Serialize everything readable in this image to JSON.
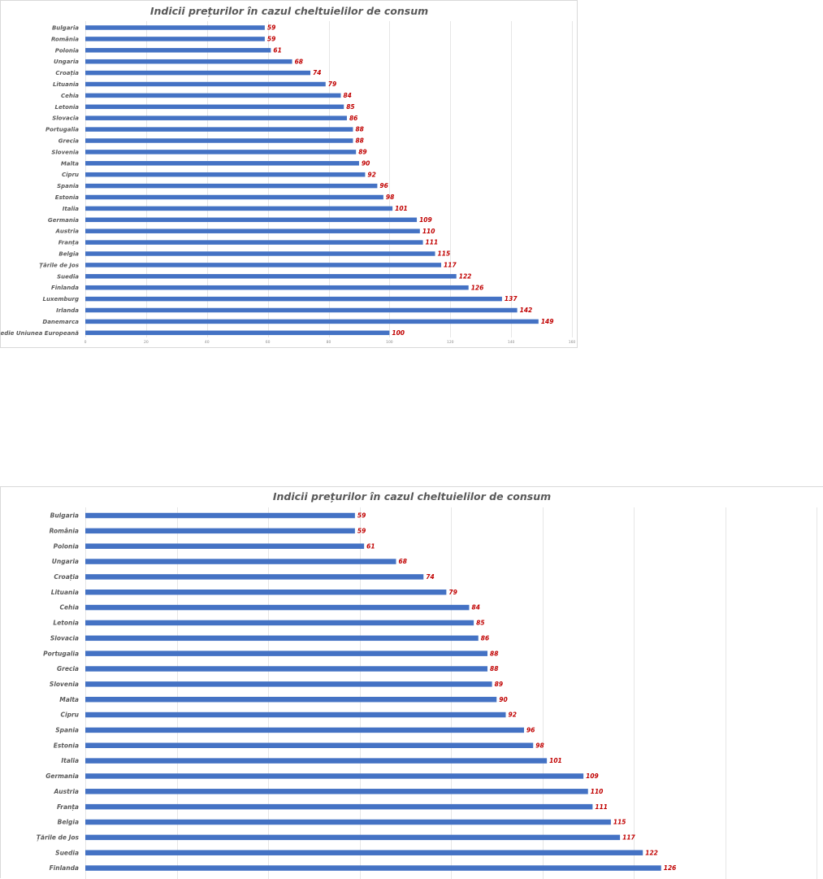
{
  "chart_data": [
    {
      "type": "bar",
      "orientation": "horizontal",
      "title": "Indicii prețurilor în cazul cheltuielilor de consum",
      "categories": [
        "Bulgaria",
        "România",
        "Polonia",
        "Ungaria",
        "Croația",
        "Lituania",
        "Cehia",
        "Letonia",
        "Slovacia",
        "Portugalia",
        "Grecia",
        "Slovenia",
        "Malta",
        "Cipru",
        "Spania",
        "Estonia",
        "Italia",
        "Germania",
        "Austria",
        "Franța",
        "Belgia",
        "Țările de Jos",
        "Suedia",
        "Finlanda",
        "Luxemburg",
        "Irlanda",
        "Danemarca",
        "medie Uniunea Europeană"
      ],
      "values": [
        59,
        59,
        61,
        68,
        74,
        79,
        84,
        85,
        86,
        88,
        88,
        89,
        90,
        92,
        96,
        98,
        101,
        109,
        110,
        111,
        115,
        117,
        122,
        126,
        137,
        142,
        149,
        100
      ],
      "xlim": [
        0,
        160
      ],
      "xticks": [
        0,
        20,
        40,
        60,
        80,
        100,
        120,
        140,
        160
      ],
      "grid": true,
      "bar_color": "#4472c4",
      "label_color": "#c00000"
    },
    {
      "type": "bar",
      "orientation": "horizontal",
      "title": "Indicii prețurilor în cazul cheltuielilor de consum",
      "categories": [
        "Bulgaria",
        "România",
        "Polonia",
        "Ungaria",
        "Croația",
        "Lituania",
        "Cehia",
        "Letonia",
        "Slovacia",
        "Portugalia",
        "Grecia",
        "Slovenia",
        "Malta",
        "Cipru",
        "Spania",
        "Estonia",
        "Italia",
        "Germania",
        "Austria",
        "Franța",
        "Belgia",
        "Țările de Jos",
        "Suedia",
        "Finlanda"
      ],
      "values": [
        59,
        59,
        61,
        68,
        74,
        79,
        84,
        85,
        86,
        88,
        88,
        89,
        90,
        92,
        96,
        98,
        101,
        109,
        110,
        111,
        115,
        117,
        122,
        126
      ],
      "xlim": [
        0,
        160
      ],
      "grid": true,
      "bar_color": "#4472c4",
      "label_color": "#c00000"
    }
  ]
}
